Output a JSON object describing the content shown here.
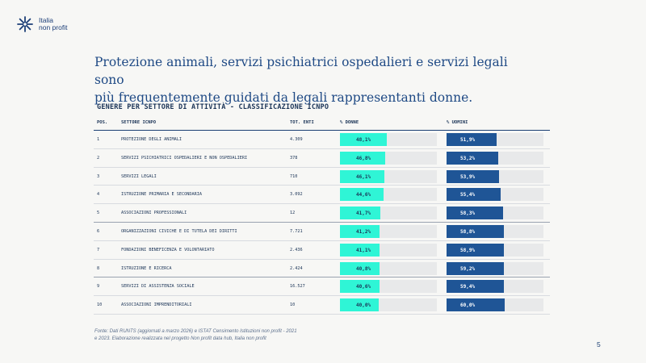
{
  "logo": {
    "line1": "Italia",
    "line2": "non profit"
  },
  "headline": {
    "line1": "Protezione animali, servizi psichiatrici ospedalieri e servizi legali sono",
    "line2": "più frequentemente guidati da legali rappresentanti donne."
  },
  "table": {
    "title": "GENERE PER SETTORE DI ATTIVITÀ - CLASSIFICAZIONE ICNPO",
    "headers": {
      "pos": "POS.",
      "sector": "SETTORE ICNPO",
      "total": "TOT. ENTI",
      "women": "% DONNE",
      "men": "% UOMINI"
    },
    "rows": [
      {
        "pos": "1",
        "sector": "PROTEZIONE DEGLI ANIMALI",
        "total": "4.309",
        "women": "48,1%",
        "men": "51,9%"
      },
      {
        "pos": "2",
        "sector": "SERVIZI PSICHIATRICI OSPEDALIERI E NON OSPEDALIERI",
        "total": "378",
        "women": "46,8%",
        "men": "53,2%"
      },
      {
        "pos": "3",
        "sector": "SERVIZI LEGALI",
        "total": "710",
        "women": "46,1%",
        "men": "53,9%"
      },
      {
        "pos": "4",
        "sector": "ISTRUZIONE PRIMARIA E SECONDARIA",
        "total": "3.092",
        "women": "44,6%",
        "men": "55,4%"
      },
      {
        "pos": "5",
        "sector": "ASSOCIAZIONI PROFESSIONALI",
        "total": "12",
        "women": "41,7%",
        "men": "58,3%"
      },
      {
        "pos": "6",
        "sector": "ORGANIZZAZIONI CIVICHE E DI TUTELA DEI DIRITTI",
        "total": "7.721",
        "women": "41,2%",
        "men": "58,8%"
      },
      {
        "pos": "7",
        "sector": "FONDAZIONI BENEFICENZA E VOLONTARIATO",
        "total": "2.436",
        "women": "41,1%",
        "men": "58,9%"
      },
      {
        "pos": "8",
        "sector": "ISTRUZIONE E RICERCA",
        "total": "2.424",
        "women": "40,8%",
        "men": "59,2%"
      },
      {
        "pos": "9",
        "sector": "SERVIZI DI ASSISTENZA SOCIALE",
        "total": "16.527",
        "women": "40,6%",
        "men": "59,4%"
      },
      {
        "pos": "10",
        "sector": "ASSOCIAZIONI IMPRENDITORIALI",
        "total": "10",
        "women": "40,0%",
        "men": "60,0%"
      }
    ]
  },
  "source": {
    "line1": "Fonte: Dati RUNTS (aggiornati a marzo 2026) e ISTAT Censimento Istituzioni non profit - 2021",
    "line2": "e 2023. Elaborazione realizzata nel progetto Non profit data hub, Italia non profit"
  },
  "page_number": "5",
  "colors": {
    "women": "#2ff5d6",
    "men": "#1f5596",
    "text": "#1b3f73",
    "background": "#f7f7f5"
  }
}
